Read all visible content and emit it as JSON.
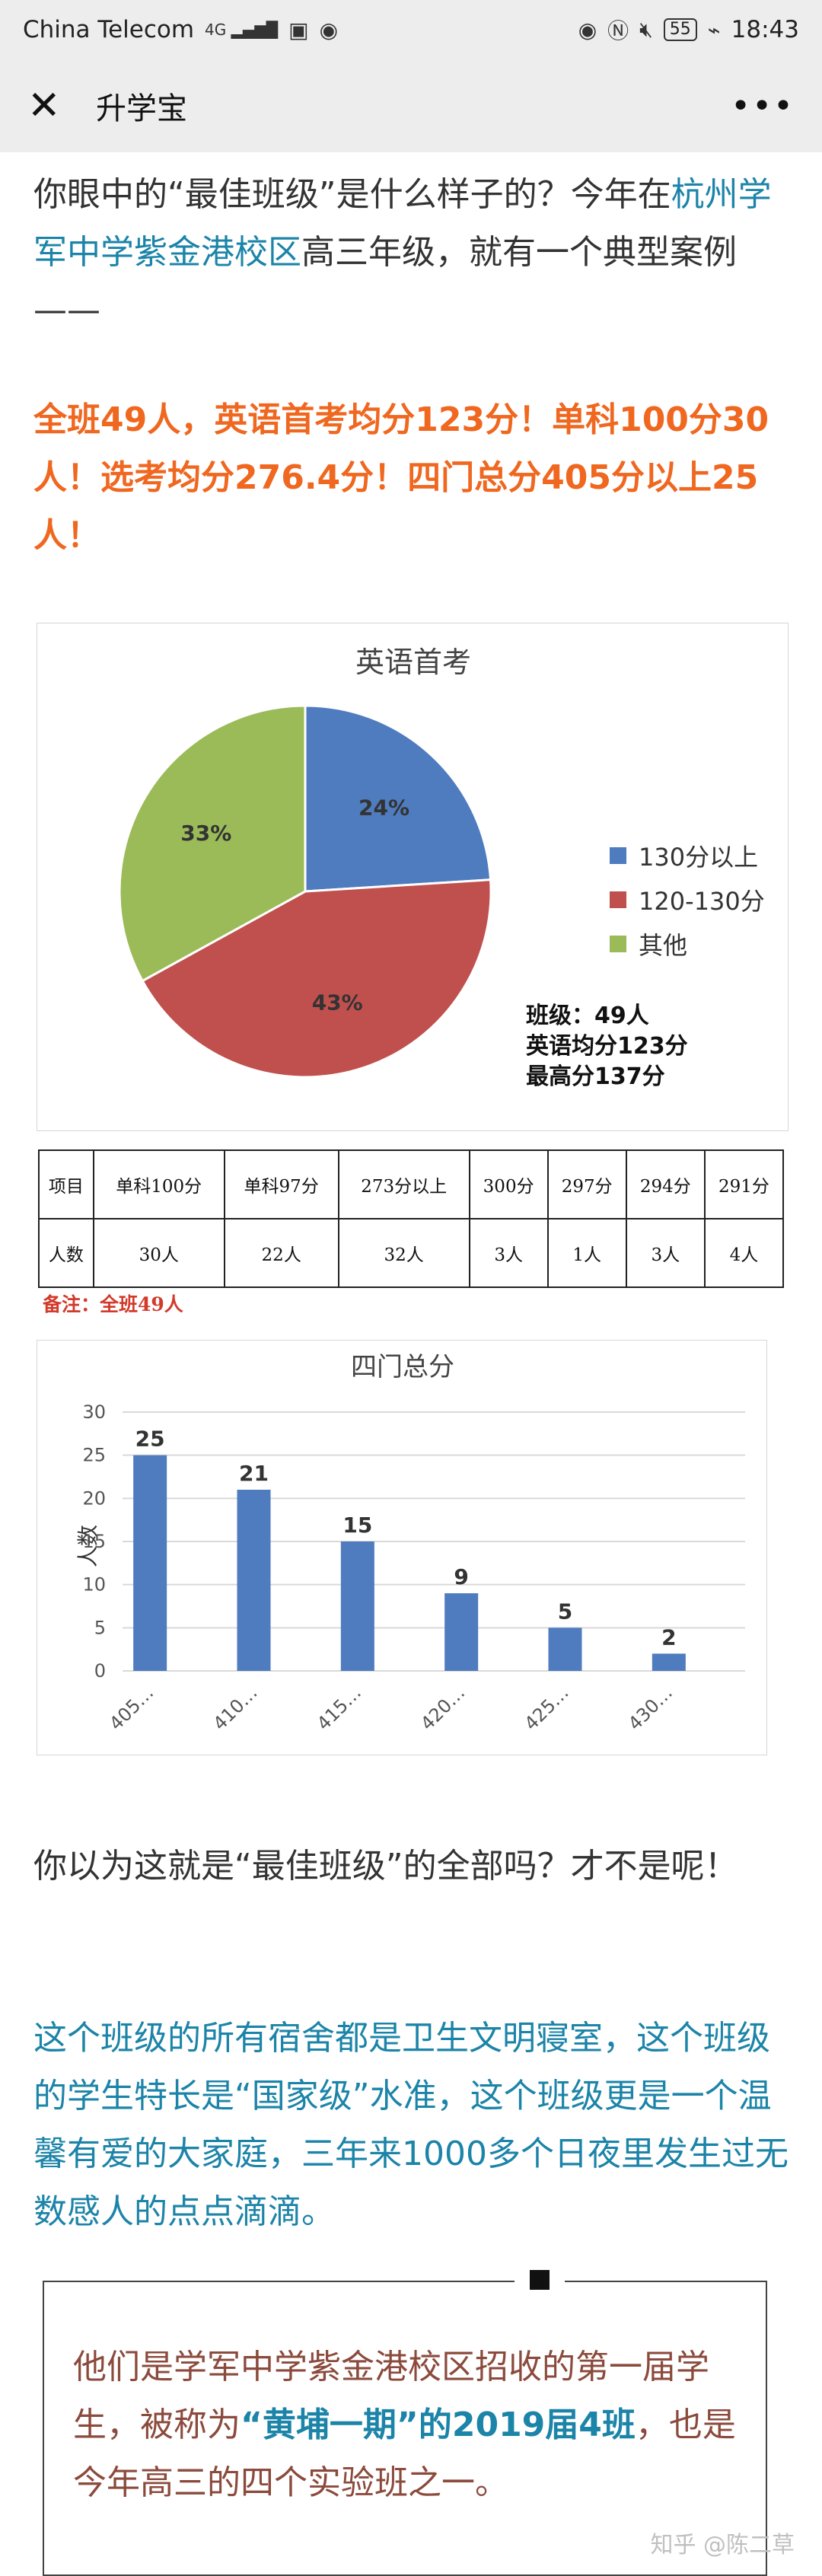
{
  "status_bar": {
    "carrier": "China Telecom",
    "network": "4G",
    "battery": "55",
    "time": "18:43"
  },
  "nav": {
    "close_icon": "close-icon",
    "title": "升学宝",
    "more_icon": "more-icon"
  },
  "article": {
    "intro_pre": "你眼中的“最佳班级”是什么样子的？今年在",
    "intro_school": "杭州学军中学紫金港校区",
    "intro_post": "高三年级，就有一个典型案例——",
    "highlight": "全班49人，英语首考均分123分！单科100分30人！选考均分276.4分！四门总分405分以上25人！",
    "question": "你以为这就是“最佳班级”的全部吗？才不是呢！",
    "teal_para": "这个班级的所有宿舍都是卫生文明寝室，这个班级的学生特长是“国家级”水准，这个班级更是一个温馨有爱的大家庭，三年来1000多个日夜里发生过无数感人的点点滴滴。",
    "quote_pre": "他们是学军中学紫金港校区招收的第一届学生，被称为",
    "quote_em": "“黄埔一期”的2019届4班",
    "quote_post": "，也是今年高三的四个实验班之一。",
    "watermark": "知乎 @陈二草"
  },
  "pie_note": {
    "line1": "班级：49人",
    "line2": "英语均分123分",
    "line3": "最高分137分"
  },
  "score_table": {
    "header": [
      "项目",
      "单科100分",
      "单科97分",
      "273分以上",
      "300分",
      "297分",
      "294分",
      "291分"
    ],
    "row": [
      "人数",
      "30人",
      "22人",
      "32人",
      "3人",
      "1人",
      "3人",
      "4人"
    ],
    "note": "备注：全班49人"
  },
  "chart_data": [
    {
      "type": "pie",
      "title": "英语首考",
      "categories": [
        "130分以上",
        "120-130分",
        "其他"
      ],
      "values": [
        24,
        43,
        33
      ],
      "labels": [
        "24%",
        "43%",
        "33%"
      ],
      "colors": [
        "#4f7bbf",
        "#c0504d",
        "#9bbb59"
      ],
      "legend": "right"
    },
    {
      "type": "bar",
      "title": "四门总分",
      "categories": [
        "405…",
        "410…",
        "415…",
        "420…",
        "425…",
        "430…"
      ],
      "values": [
        25,
        21,
        15,
        9,
        5,
        2
      ],
      "ylabel": "人数",
      "xlabel": "",
      "ylim": [
        0,
        30
      ],
      "yticks": [
        0,
        5,
        10,
        15,
        20,
        25,
        30
      ],
      "grid": true,
      "color": "#4f7bbf"
    }
  ]
}
